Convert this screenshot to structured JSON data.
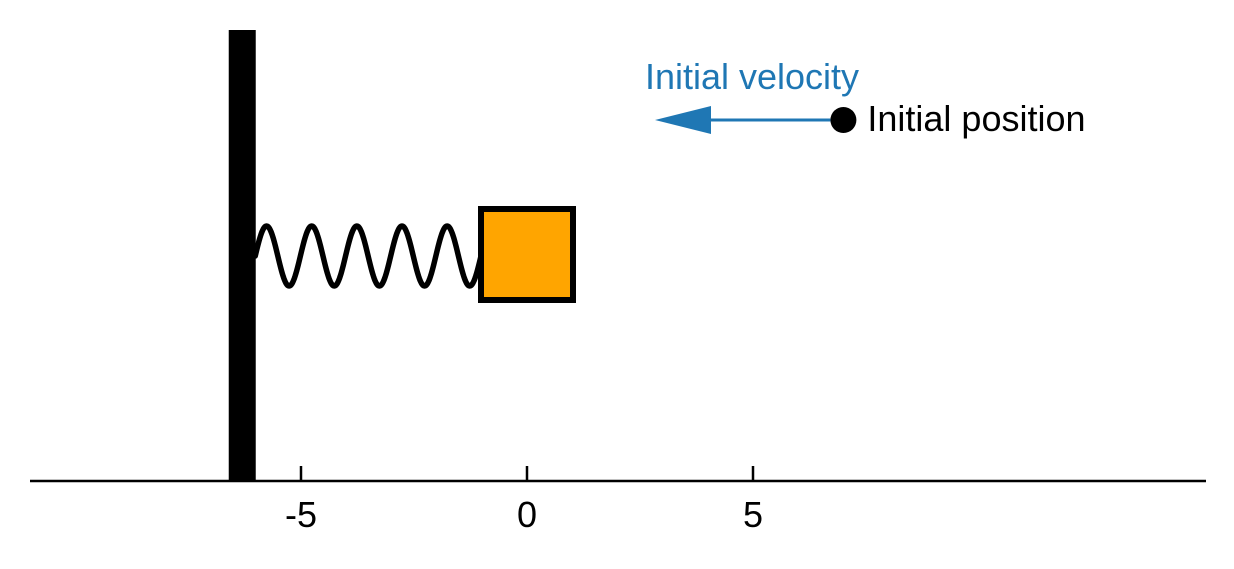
{
  "diagram": {
    "axis": {
      "ticks": [
        {
          "value": -5,
          "label": "-5"
        },
        {
          "value": 0,
          "label": "0"
        },
        {
          "value": 5,
          "label": "5"
        }
      ]
    },
    "wall": {
      "position": -6.3
    },
    "mass": {
      "position": 0,
      "color": "#FFA500"
    },
    "spring": {
      "coils": 5
    },
    "annotations": {
      "initial_velocity": {
        "label": "Initial velocity",
        "color": "#1f77b4"
      },
      "initial_position": {
        "label": "Initial position",
        "position": 7
      }
    }
  }
}
